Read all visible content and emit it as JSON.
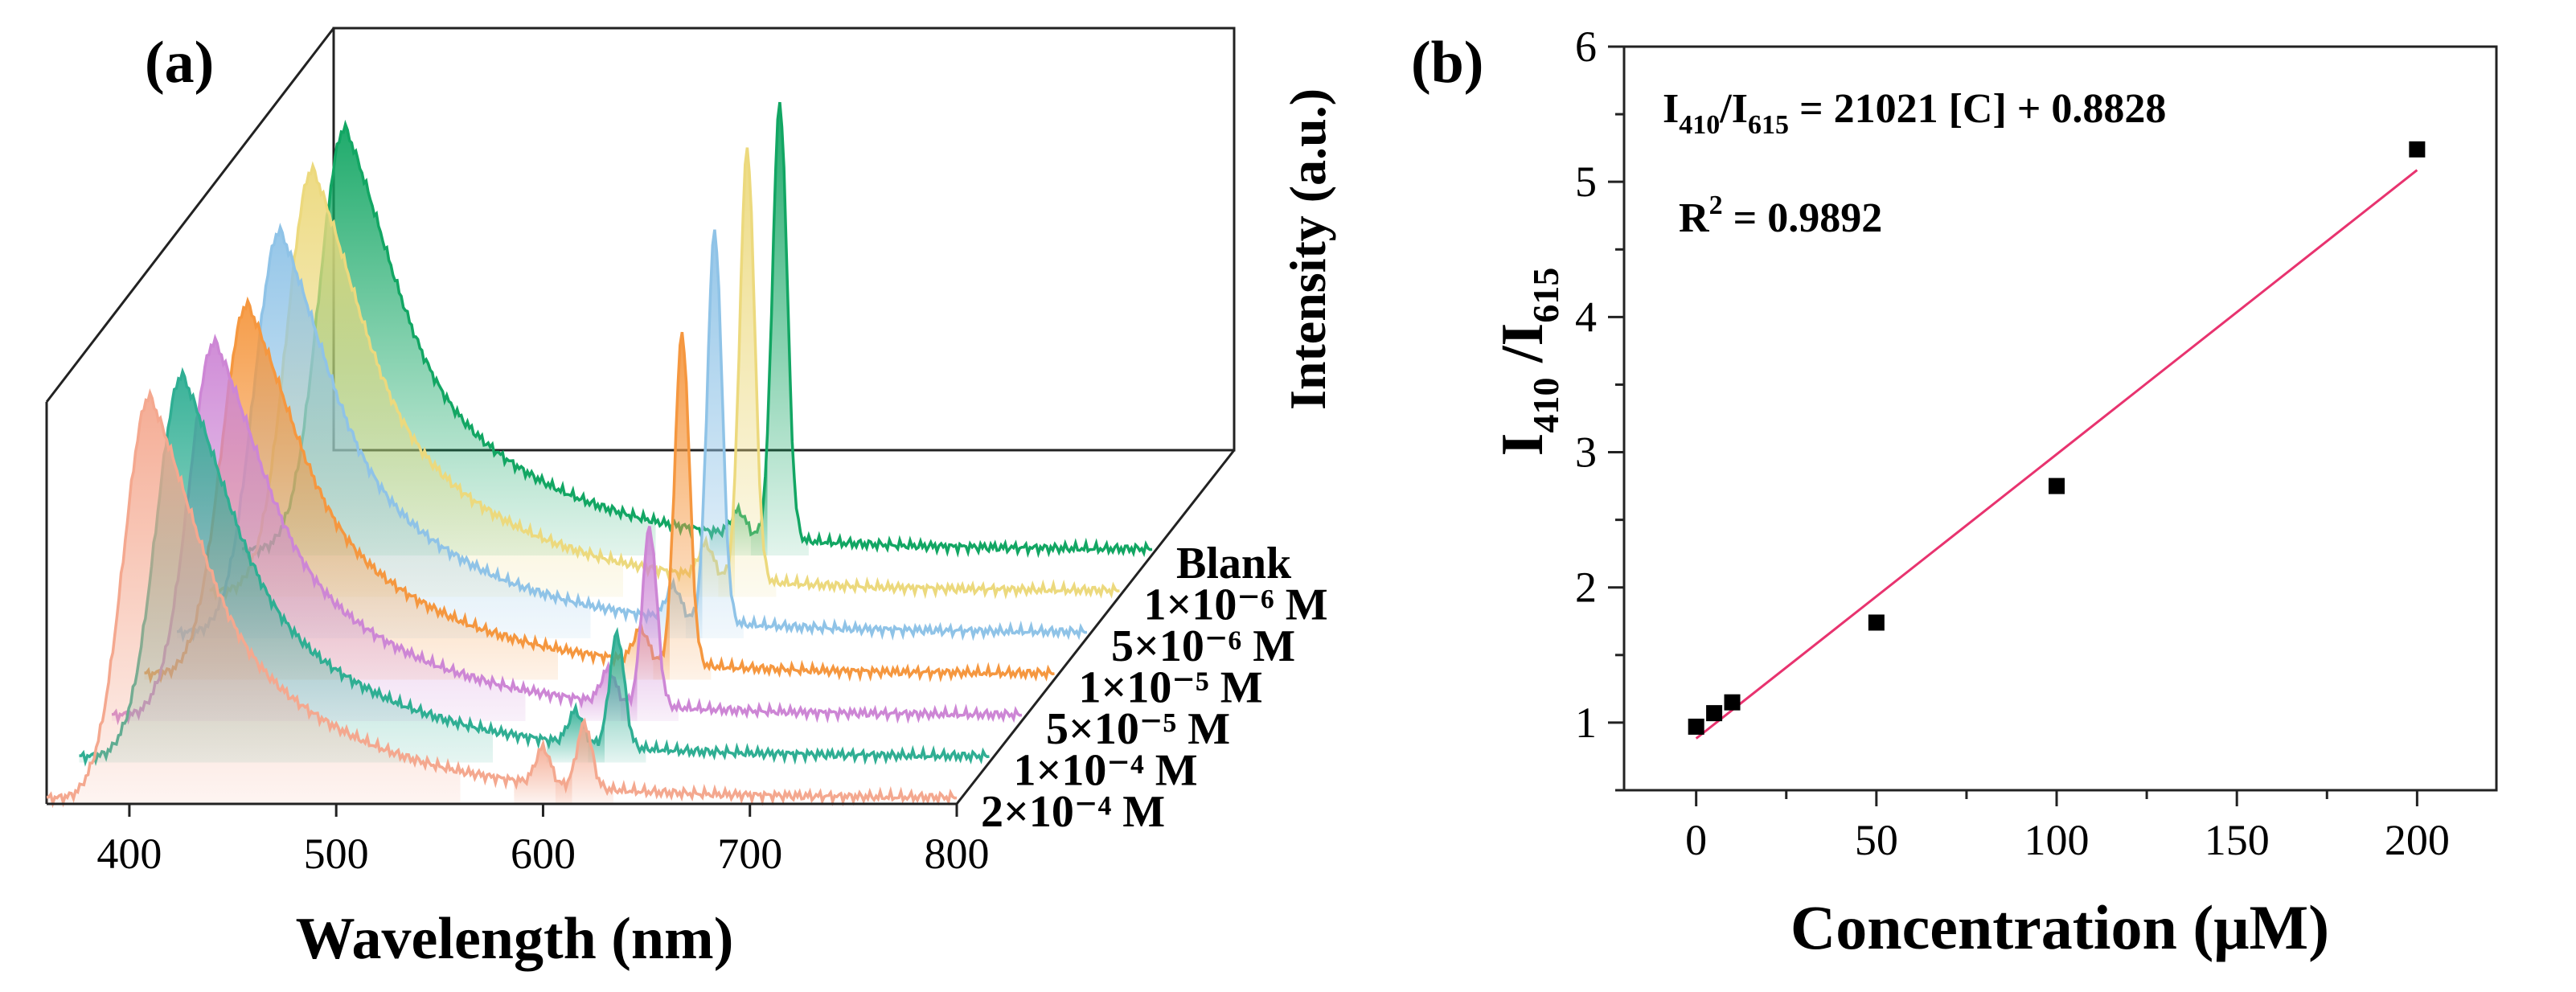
{
  "chart_data": [
    {
      "panel_label": "(a)",
      "type": "area",
      "subtype": "3d-waterfall-fluorescence-spectra",
      "xlabel": "Wavelength (nm)",
      "ylabel": "Intensity (a.u.)",
      "xlim": [
        360,
        800
      ],
      "xticks": [
        400,
        500,
        600,
        700,
        800
      ],
      "series": [
        {
          "name": "2×10⁻⁴ M",
          "color": "#f4a88f",
          "main_peak_nm": 410,
          "main_peak_rel": 1.0,
          "peaks": [
            [
              600,
              0.09
            ],
            [
              620,
              0.16
            ]
          ]
        },
        {
          "name": "1×10⁻⁴ M",
          "color": "#2fae93",
          "main_peak_nm": 410,
          "main_peak_rel": 0.95,
          "peaks": [
            [
              600,
              0.08
            ],
            [
              620,
              0.28
            ]
          ]
        },
        {
          "name": "5×10⁻⁵ M",
          "color": "#cd86d5",
          "main_peak_nm": 410,
          "main_peak_rel": 0.93,
          "peaks": [
            [
              600,
              0.08
            ],
            [
              620,
              0.44
            ]
          ]
        },
        {
          "name": "1×10⁻⁵ M",
          "color": "#f5973f",
          "main_peak_nm": 410,
          "main_peak_rel": 0.92,
          "peaks": [
            [
              600,
              0.08
            ],
            [
              620,
              0.82
            ]
          ]
        },
        {
          "name": "5×10⁻⁶ M",
          "color": "#8fc3e7",
          "main_peak_nm": 410,
          "main_peak_rel": 1.0,
          "peaks": [
            [
              600,
              0.08
            ],
            [
              620,
              0.97
            ]
          ]
        },
        {
          "name": "1×10⁻⁶ M",
          "color": "#ecd97d",
          "main_peak_nm": 410,
          "main_peak_rel": 1.05,
          "peaks": [
            [
              600,
              0.08
            ],
            [
              620,
              1.07
            ]
          ]
        },
        {
          "name": "Blank",
          "color": "#12a663",
          "main_peak_nm": 410,
          "main_peak_rel": 1.05,
          "peaks": [
            [
              600,
              0.06
            ],
            [
              620,
              1.08
            ]
          ]
        }
      ]
    },
    {
      "panel_label": "(b)",
      "type": "scatter",
      "xlabel": "Concentration (μM)",
      "ylabel_parts": [
        "I",
        "410",
        " /I",
        "615"
      ],
      "xlim": [
        -20,
        222
      ],
      "ylim": [
        0.5,
        6
      ],
      "xticks": [
        0,
        50,
        100,
        150,
        200
      ],
      "yticks": [
        1,
        2,
        3,
        4,
        5,
        6
      ],
      "points": [
        {
          "x": 0,
          "y": 0.97
        },
        {
          "x": 5,
          "y": 1.07
        },
        {
          "x": 10,
          "y": 1.15
        },
        {
          "x": 50,
          "y": 1.74
        },
        {
          "x": 100,
          "y": 2.75
        },
        {
          "x": 200,
          "y": 5.24
        }
      ],
      "fit": {
        "slope_per_uM": 0.021021,
        "intercept": 0.8828,
        "x_range": [
          0,
          200
        ],
        "color": "#e8336f"
      },
      "annotations": {
        "eq_I": "I",
        "eq_sub1": "410",
        "eq_mid": "/I",
        "eq_sub2": "615",
        "eq_tail": " = 21021 [C] + 0.8828",
        "r2_prefix": "R",
        "r2_sup": "2",
        "r2_tail": " = 0.9892"
      }
    }
  ]
}
